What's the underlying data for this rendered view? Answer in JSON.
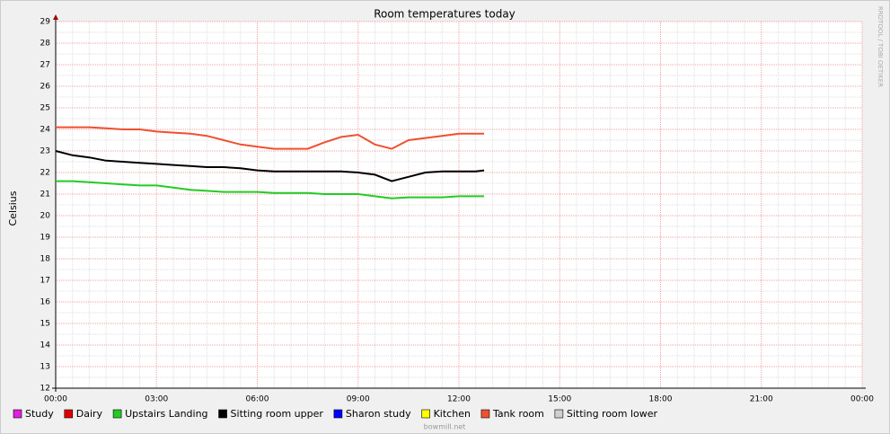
{
  "chart_data": {
    "type": "line",
    "title": "Room temperatures today",
    "y_label": "Celsius",
    "watermark": "RRDTOOL / TOBI OETIKER",
    "footer": "bowmill.net",
    "x": [
      0,
      0.5,
      1,
      1.5,
      2,
      2.5,
      3,
      3.5,
      4,
      4.5,
      5,
      5.5,
      6,
      6.5,
      7,
      7.5,
      8,
      8.5,
      9,
      9.5,
      10,
      10.5,
      11,
      11.5,
      12,
      12.5,
      12.75
    ],
    "xlim": [
      0,
      24
    ],
    "xticks": [
      {
        "value": 0,
        "label": "00:00"
      },
      {
        "value": 3,
        "label": "03:00"
      },
      {
        "value": 6,
        "label": "06:00"
      },
      {
        "value": 9,
        "label": "09:00"
      },
      {
        "value": 12,
        "label": "12:00"
      },
      {
        "value": 15,
        "label": "15:00"
      },
      {
        "value": 18,
        "label": "18:00"
      },
      {
        "value": 21,
        "label": "21:00"
      },
      {
        "value": 24,
        "label": "00:00"
      }
    ],
    "ylim": [
      12,
      29
    ],
    "yticks": [
      12,
      13,
      14,
      15,
      16,
      17,
      18,
      19,
      20,
      21,
      22,
      23,
      24,
      25,
      26,
      27,
      28,
      29
    ],
    "grid": true,
    "legend": "bottom",
    "series": [
      {
        "name": "Study",
        "color": "#e020e0",
        "values": [
          null,
          null,
          null,
          null,
          null,
          null,
          null,
          null,
          null,
          null,
          null,
          null,
          null,
          null,
          null,
          null,
          null,
          null,
          null,
          null,
          null,
          null,
          null,
          null,
          null,
          null,
          null
        ]
      },
      {
        "name": "Dairy",
        "color": "#e00000",
        "values": [
          null,
          null,
          null,
          null,
          null,
          null,
          null,
          null,
          null,
          null,
          null,
          null,
          null,
          null,
          null,
          null,
          null,
          null,
          null,
          null,
          null,
          null,
          null,
          null,
          null,
          null,
          null
        ]
      },
      {
        "name": "Upstairs Landing",
        "color": "#22cc22",
        "values": [
          21.6,
          21.6,
          21.55,
          21.5,
          21.45,
          21.4,
          21.4,
          21.3,
          21.2,
          21.15,
          21.1,
          21.1,
          21.1,
          21.05,
          21.05,
          21.05,
          21.0,
          21.0,
          21.0,
          20.9,
          20.8,
          20.85,
          20.85,
          20.85,
          20.9,
          20.9,
          20.9
        ]
      },
      {
        "name": "Sitting room upper",
        "color": "#000000",
        "values": [
          23.0,
          22.8,
          22.7,
          22.55,
          22.5,
          22.45,
          22.4,
          22.35,
          22.3,
          22.25,
          22.25,
          22.2,
          22.1,
          22.05,
          22.05,
          22.05,
          22.05,
          22.05,
          22.0,
          21.9,
          21.6,
          21.8,
          22.0,
          22.05,
          22.05,
          22.05,
          22.1
        ]
      },
      {
        "name": "Sharon study",
        "color": "#0000ff",
        "values": [
          null,
          null,
          null,
          null,
          null,
          null,
          null,
          null,
          null,
          null,
          null,
          null,
          null,
          null,
          null,
          null,
          null,
          null,
          null,
          null,
          null,
          null,
          null,
          null,
          null,
          null,
          null
        ]
      },
      {
        "name": "Kitchen",
        "color": "#ffff00",
        "values": [
          null,
          null,
          null,
          null,
          null,
          null,
          null,
          null,
          null,
          null,
          null,
          null,
          null,
          null,
          null,
          null,
          null,
          null,
          null,
          null,
          null,
          null,
          null,
          null,
          null,
          null,
          null
        ]
      },
      {
        "name": "Tank room",
        "color": "#f05030",
        "values": [
          24.1,
          24.1,
          24.1,
          24.05,
          24.0,
          24.0,
          23.9,
          23.85,
          23.8,
          23.7,
          23.5,
          23.3,
          23.2,
          23.1,
          23.1,
          23.1,
          23.4,
          23.65,
          23.75,
          23.3,
          23.1,
          23.5,
          23.6,
          23.7,
          23.8,
          23.8,
          23.8
        ]
      },
      {
        "name": "Sitting room lower",
        "color": "#d0d0d0",
        "values": [
          null,
          null,
          null,
          null,
          null,
          null,
          null,
          null,
          null,
          null,
          null,
          null,
          null,
          null,
          null,
          null,
          null,
          null,
          null,
          null,
          null,
          null,
          null,
          null,
          null,
          null,
          null
        ]
      }
    ]
  }
}
